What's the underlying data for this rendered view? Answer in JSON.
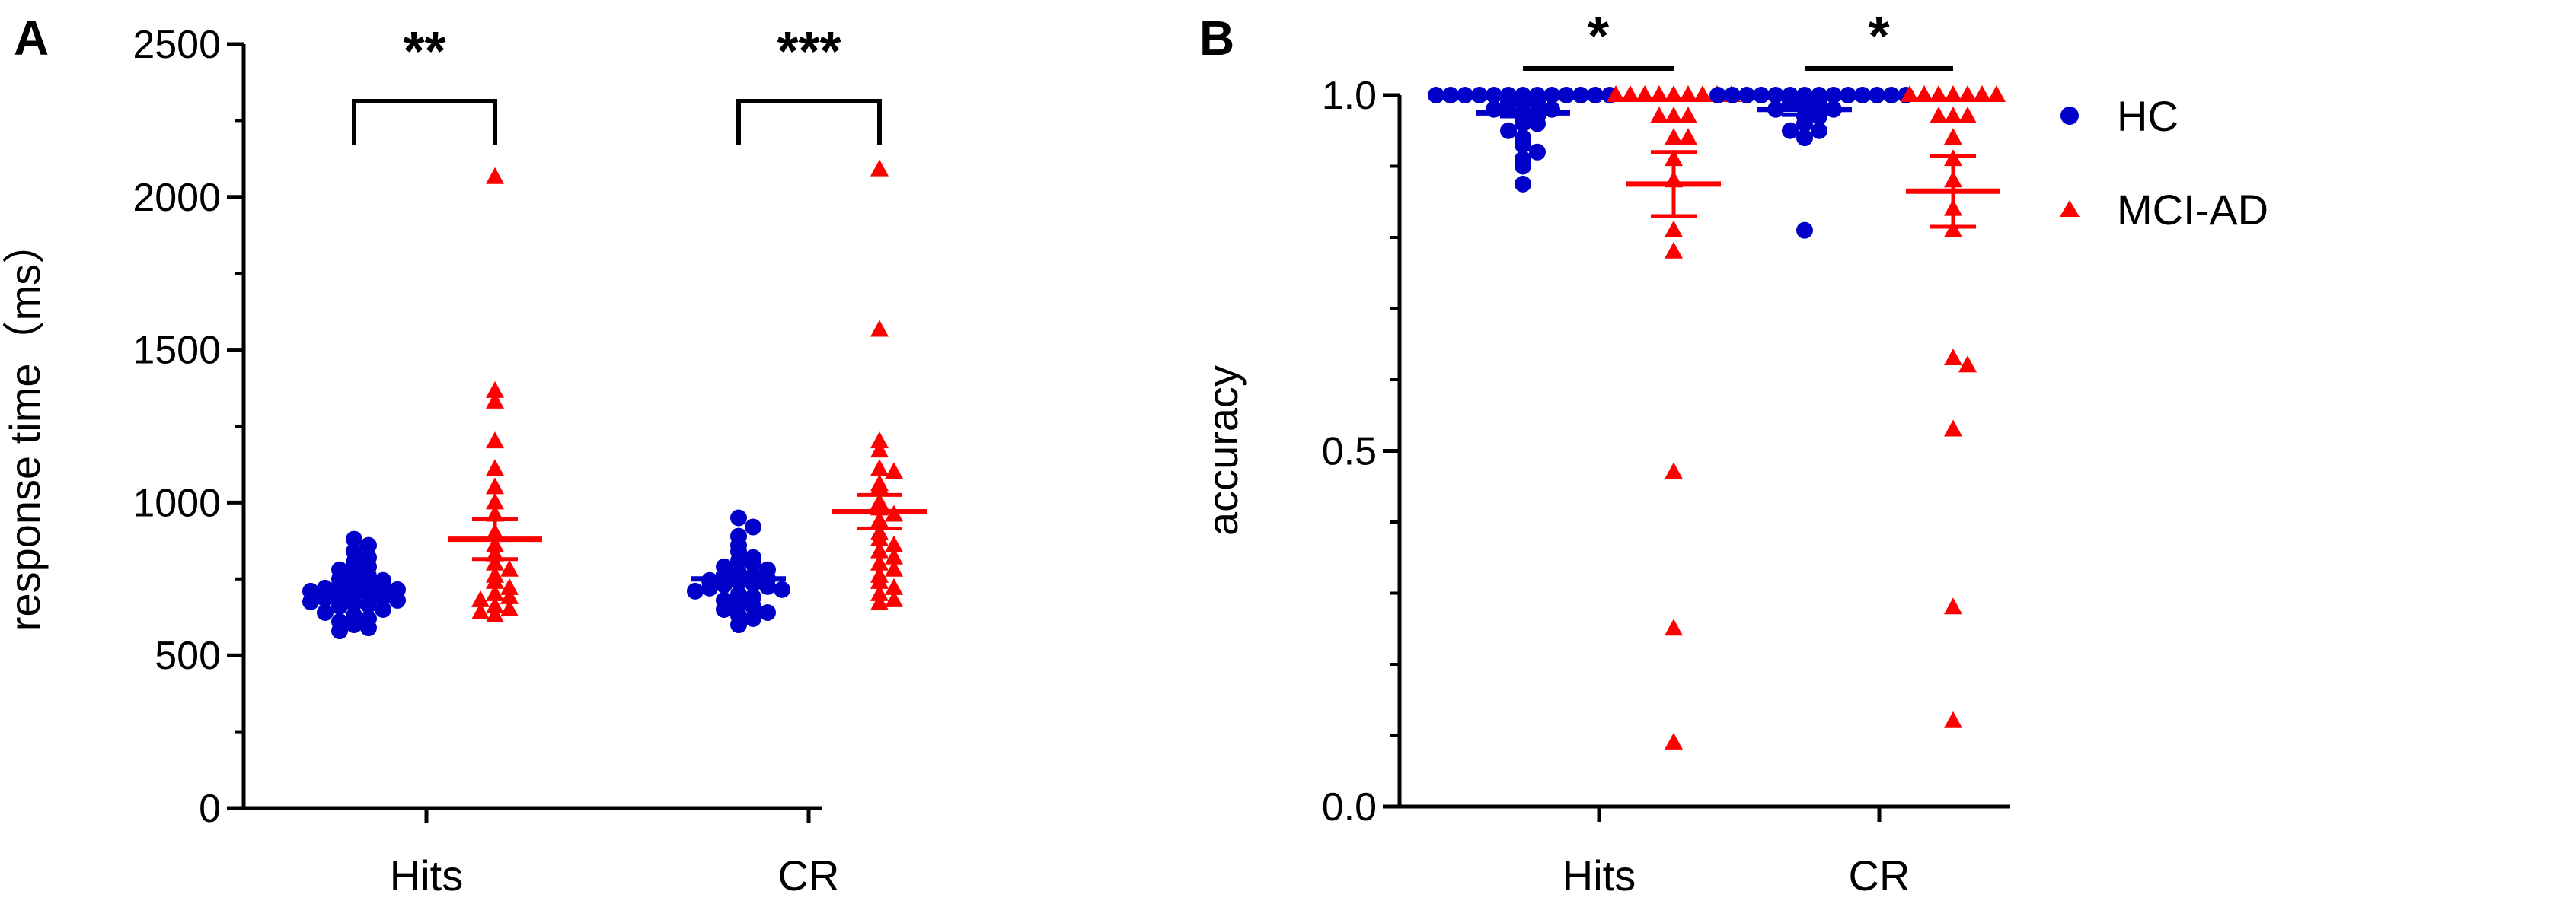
{
  "colors": {
    "hc": "#0000c8",
    "mci": "#ff0000",
    "axis": "#000000"
  },
  "legend": [
    {
      "name": "HC",
      "marker": "circle",
      "color": "#0000c8"
    },
    {
      "name": "MCI-AD",
      "marker": "triangle",
      "color": "#ff0000"
    }
  ],
  "chart_data": [
    {
      "panel": "A",
      "type": "scatter",
      "ylabel": "response time（ms）",
      "xlabel": "",
      "ylim": [
        0,
        2500
      ],
      "yticks": [
        0,
        500,
        1000,
        1500,
        2000,
        2500
      ],
      "categories": [
        "Hits",
        "CR"
      ],
      "series": [
        {
          "name": "HC",
          "category": "Hits",
          "marker": "circle",
          "mean": 705,
          "sem": 15,
          "values": [
            880,
            860,
            840,
            820,
            805,
            790,
            780,
            770,
            760,
            750,
            745,
            740,
            735,
            730,
            725,
            720,
            715,
            710,
            705,
            700,
            695,
            690,
            685,
            680,
            675,
            670,
            665,
            660,
            650,
            640,
            630,
            620,
            610,
            600,
            590,
            580
          ]
        },
        {
          "name": "MCI-AD",
          "category": "Hits",
          "marker": "triangle",
          "mean": 880,
          "sem": 65,
          "values": [
            2065,
            1365,
            1330,
            1200,
            1110,
            1050,
            1000,
            960,
            900,
            860,
            830,
            800,
            780,
            760,
            740,
            720,
            700,
            690,
            680,
            660,
            650,
            640,
            630
          ]
        },
        {
          "name": "HC",
          "category": "CR",
          "marker": "circle",
          "mean": 750,
          "sem": 15,
          "values": [
            950,
            920,
            890,
            860,
            840,
            820,
            810,
            800,
            790,
            780,
            770,
            760,
            755,
            750,
            745,
            740,
            735,
            730,
            725,
            720,
            715,
            710,
            700,
            690,
            680,
            670,
            660,
            650,
            640,
            630,
            620,
            600
          ]
        },
        {
          "name": "MCI-AD",
          "category": "CR",
          "marker": "triangle",
          "mean": 970,
          "sem": 55,
          "values": [
            2090,
            1565,
            1200,
            1170,
            1110,
            1100,
            1060,
            1050,
            1000,
            980,
            960,
            940,
            900,
            880,
            860,
            840,
            820,
            800,
            780,
            760,
            740,
            720,
            700,
            680,
            670
          ]
        }
      ],
      "significance": [
        {
          "category": "Hits",
          "label": "**"
        },
        {
          "category": "CR",
          "label": "***"
        }
      ]
    },
    {
      "panel": "B",
      "type": "scatter",
      "ylabel": "accuracy",
      "xlabel": "",
      "ylim": [
        0.0,
        1.0
      ],
      "yticks": [
        0.0,
        0.5,
        1.0
      ],
      "ytick_labels": [
        "0.0",
        "0.5",
        "1.0"
      ],
      "categories": [
        "Hits",
        "CR"
      ],
      "series": [
        {
          "name": "HC",
          "category": "Hits",
          "marker": "circle",
          "mean": 0.975,
          "sem": 0.005,
          "values": [
            1.0,
            1.0,
            1.0,
            1.0,
            1.0,
            1.0,
            1.0,
            1.0,
            1.0,
            1.0,
            1.0,
            1.0,
            1.0,
            0.99,
            0.99,
            0.99,
            0.98,
            0.98,
            0.97,
            0.97,
            0.96,
            0.96,
            0.95,
            0.94,
            0.93,
            0.92,
            0.91,
            0.9,
            0.875
          ]
        },
        {
          "name": "MCI-AD",
          "category": "Hits",
          "marker": "triangle",
          "mean": 0.875,
          "sem": 0.045,
          "values": [
            1.0,
            1.0,
            1.0,
            1.0,
            1.0,
            1.0,
            1.0,
            1.0,
            1.0,
            0.97,
            0.97,
            0.97,
            0.94,
            0.94,
            0.91,
            0.88,
            0.81,
            0.78,
            0.47,
            0.25,
            0.09
          ]
        },
        {
          "name": "HC",
          "category": "CR",
          "marker": "circle",
          "mean": 0.98,
          "sem": 0.008,
          "values": [
            1.0,
            1.0,
            1.0,
            1.0,
            1.0,
            1.0,
            1.0,
            1.0,
            1.0,
            1.0,
            1.0,
            1.0,
            1.0,
            1.0,
            0.99,
            0.99,
            0.99,
            0.98,
            0.98,
            0.97,
            0.97,
            0.96,
            0.95,
            0.95,
            0.94,
            0.81
          ]
        },
        {
          "name": "MCI-AD",
          "category": "CR",
          "marker": "triangle",
          "mean": 0.865,
          "sem": 0.05,
          "values": [
            1.0,
            1.0,
            1.0,
            1.0,
            1.0,
            1.0,
            1.0,
            0.97,
            0.97,
            0.97,
            0.94,
            0.91,
            0.88,
            0.84,
            0.81,
            0.63,
            0.62,
            0.53,
            0.28,
            0.12
          ]
        }
      ],
      "significance": [
        {
          "category": "Hits",
          "label": "*"
        },
        {
          "category": "CR",
          "label": "*"
        }
      ]
    }
  ]
}
